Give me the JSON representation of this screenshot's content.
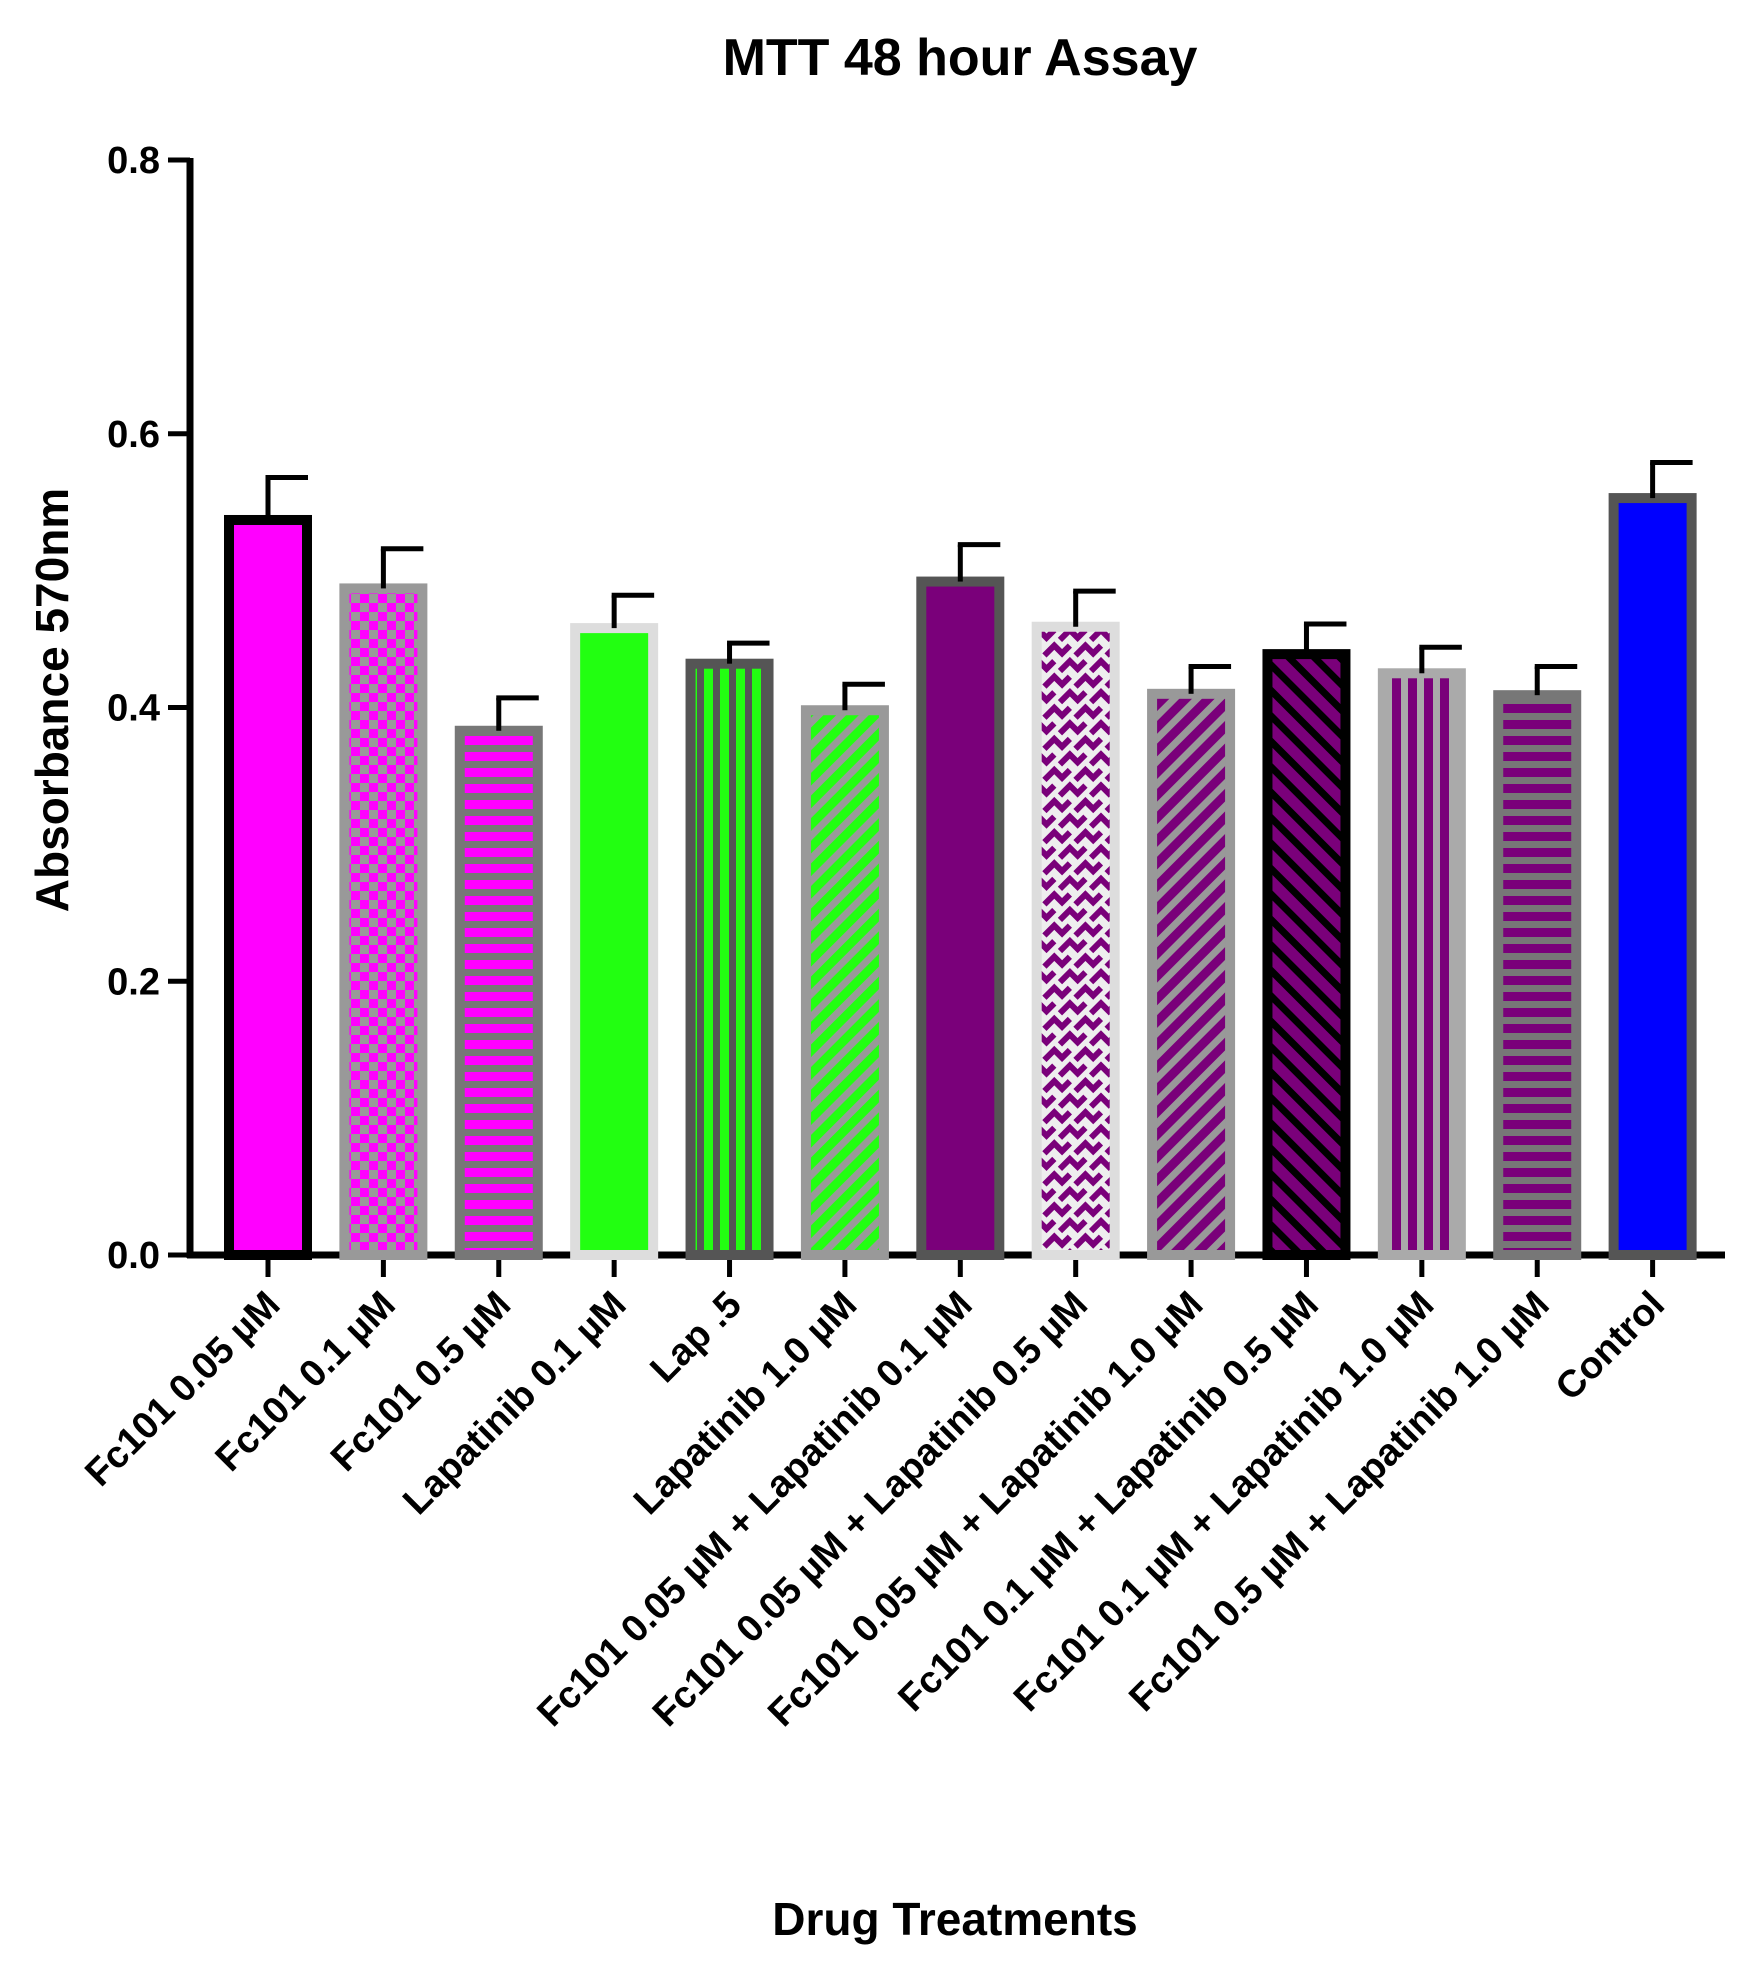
{
  "chart_data": {
    "type": "bar",
    "title": "MTT 48 hour Assay",
    "xlabel": "Drug Treatments",
    "ylabel": "Absorbance 570nm",
    "ylim": [
      0,
      0.8
    ],
    "yticks": [
      "0.0",
      "0.2",
      "0.4",
      "0.6",
      "0.8"
    ],
    "grid": false,
    "legend": "none",
    "error_bars": "upper",
    "categories": [
      "Fc101 0.05 µM",
      "Fc101 0.1 µM",
      "Fc101 0.5 µM",
      "Lapatinib 0.1 µM",
      "Lap .5",
      "Lapatinib 1.0 µM",
      "Fc101 0.05 µM + Lapatinib 0.1 µM",
      "Fc101 0.05 µM + Lapatinib 0.5 µM",
      "Fc101 0.05 µM + Lapatinib 1.0 µM",
      "Fc101 0.1 µM + Lapatinib 0.5 µM",
      "Fc101 0.1 µM + Lapatinib 1.0 µM",
      "Fc101 0.5 µM + Lapatinib 1.0 µM",
      "Control"
    ],
    "values": [
      0.537,
      0.487,
      0.383,
      0.458,
      0.432,
      0.398,
      0.492,
      0.459,
      0.41,
      0.439,
      0.425,
      0.409,
      0.553
    ],
    "errors": [
      0.031,
      0.029,
      0.024,
      0.024,
      0.015,
      0.019,
      0.027,
      0.026,
      0.02,
      0.022,
      0.019,
      0.021,
      0.026
    ],
    "colors": {
      "magenta": "#ff00ff",
      "green": "#22ff11",
      "purple": "#7a007a",
      "blue": "#0000ff",
      "outline_dark": "#555555",
      "outline_gray": "#999999",
      "outline_light": "#dddddd",
      "outline_black": "#000000"
    },
    "bar_styles": [
      {
        "fill": "#ff00ff",
        "pattern": "solid",
        "outline": "#000000"
      },
      {
        "fill": "#ff00ff",
        "pattern": "checker",
        "outline": "#999999"
      },
      {
        "fill": "#ff00ff",
        "pattern": "hstripes",
        "outline": "#777777"
      },
      {
        "fill": "#22ff11",
        "pattern": "solid",
        "outline": "#dddddd"
      },
      {
        "fill": "#22ff11",
        "pattern": "vstripes",
        "outline": "#555555"
      },
      {
        "fill": "#22ff11",
        "pattern": "diag",
        "outline": "#999999"
      },
      {
        "fill": "#7a007a",
        "pattern": "solid",
        "outline": "#555555"
      },
      {
        "fill": "#7a007a",
        "pattern": "weave",
        "outline": "#dddddd"
      },
      {
        "fill": "#7a007a",
        "pattern": "diag",
        "outline": "#999999"
      },
      {
        "fill": "#7a007a",
        "pattern": "diagrev",
        "outline": "#000000"
      },
      {
        "fill": "#7a007a",
        "pattern": "vstripes",
        "outline": "#aaaaaa"
      },
      {
        "fill": "#7a007a",
        "pattern": "hstripes",
        "outline": "#777777"
      },
      {
        "fill": "#0000ff",
        "pattern": "solid",
        "outline": "#555555"
      }
    ]
  }
}
